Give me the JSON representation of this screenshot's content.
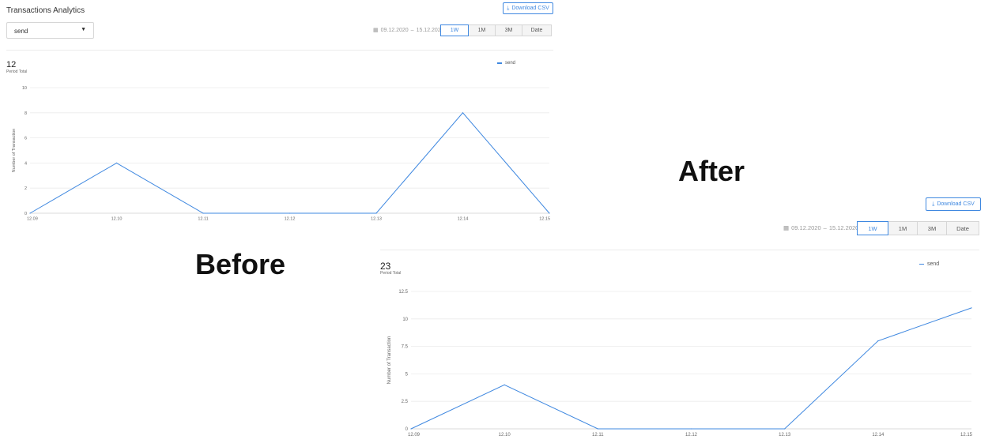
{
  "before": {
    "title": "Transactions Analytics",
    "dropdown": {
      "selected": "send"
    },
    "download_label": "Download CSV",
    "date_from": "09.12.2020",
    "date_sep": "–",
    "date_to": "15.12.2020",
    "range_buttons": [
      "1W",
      "1M",
      "3M",
      "Date"
    ],
    "active_range": "1W",
    "total": {
      "value": "12",
      "label": "Period Total"
    },
    "legend": "send"
  },
  "after": {
    "download_label": "Download CSV",
    "date_from": "09.12.2020",
    "date_sep": "–",
    "date_to": "15.12.2020",
    "range_buttons": [
      "1W",
      "1M",
      "3M",
      "Date"
    ],
    "active_range": "1W",
    "total": {
      "value": "23",
      "label": "Period Total"
    },
    "legend": "send"
  },
  "captions": {
    "before": "Before",
    "after": "After"
  },
  "colors": {
    "accent": "#3f88e0",
    "grid": "#ececec"
  },
  "chart_data": [
    {
      "type": "line",
      "x": [
        "12.09",
        "12.10",
        "12.11",
        "12.12",
        "12.13",
        "12.14",
        "12.15"
      ],
      "series": [
        {
          "name": "send",
          "values": [
            0,
            4,
            0,
            0,
            0,
            8,
            0
          ]
        }
      ],
      "ylabel": "Number of Transaction",
      "ylim": [
        0,
        10
      ],
      "yticks": [
        "0",
        "2",
        "4",
        "6",
        "8",
        "10"
      ],
      "grid": true,
      "legend": "top-right"
    },
    {
      "type": "line",
      "x": [
        "12.09",
        "12.10",
        "12.11",
        "12.12",
        "12.13",
        "12.14",
        "12.15"
      ],
      "series": [
        {
          "name": "send",
          "values": [
            0,
            4,
            0,
            0,
            0,
            8,
            11
          ]
        }
      ],
      "ylabel": "Number of Transaction",
      "ylim": [
        0,
        12.5
      ],
      "yticks": [
        "0",
        "2.5",
        "5",
        "7.5",
        "10",
        "12.5"
      ],
      "grid": true,
      "legend": "top-right"
    }
  ]
}
